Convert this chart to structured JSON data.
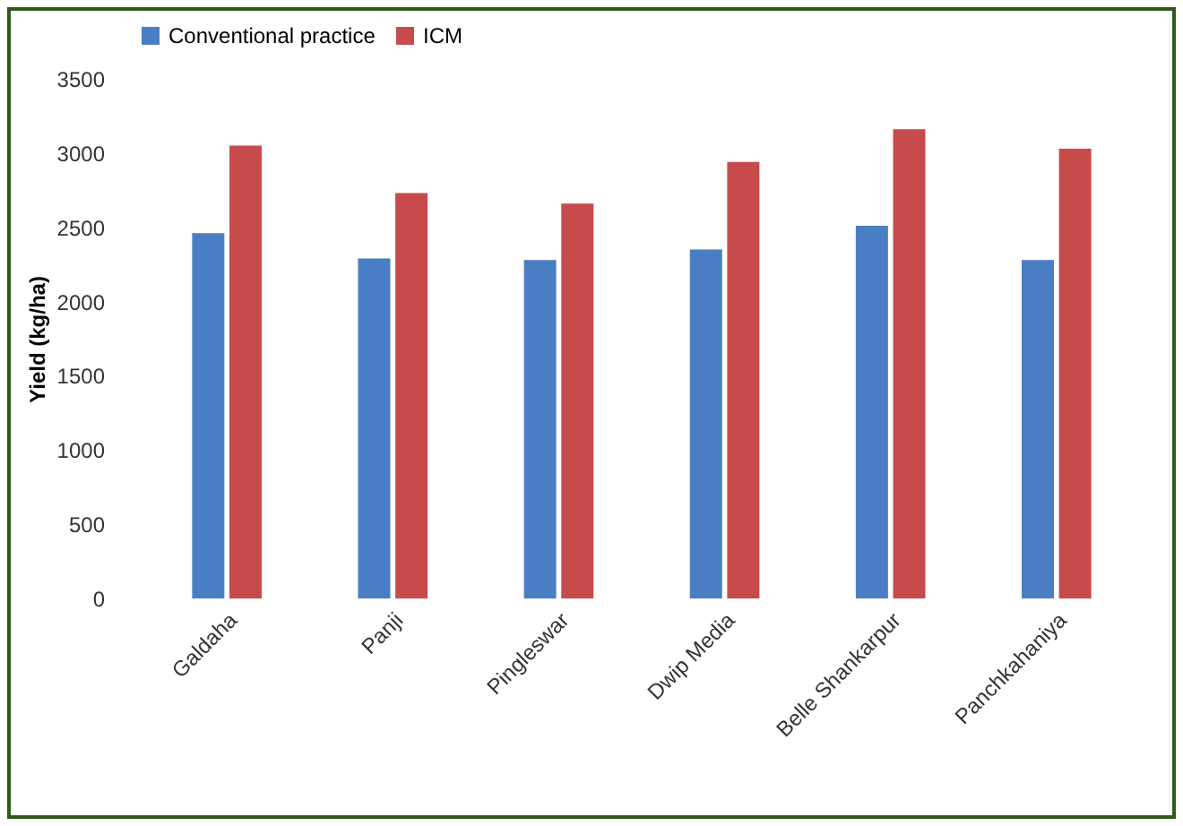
{
  "chart_data": {
    "type": "bar",
    "ylabel": "Yield (kg/ha)",
    "categories": [
      "Galdaha",
      "Panji",
      "Pingleswar",
      "Dwip Media",
      "Belle Shankarpur",
      "Panchkahaniya"
    ],
    "series": [
      {
        "name": "Conventional practice",
        "color": "#4a7ec4",
        "values": [
          2460,
          2290,
          2280,
          2350,
          2510,
          2280
        ]
      },
      {
        "name": "ICM",
        "color": "#c84b4b",
        "values": [
          3050,
          2730,
          2660,
          2940,
          3160,
          3030
        ]
      }
    ],
    "ylim": [
      0,
      3500
    ],
    "yticks": [
      0,
      500,
      1000,
      1500,
      2000,
      2500,
      3000,
      3500
    ],
    "grid": false,
    "legend": "top"
  }
}
